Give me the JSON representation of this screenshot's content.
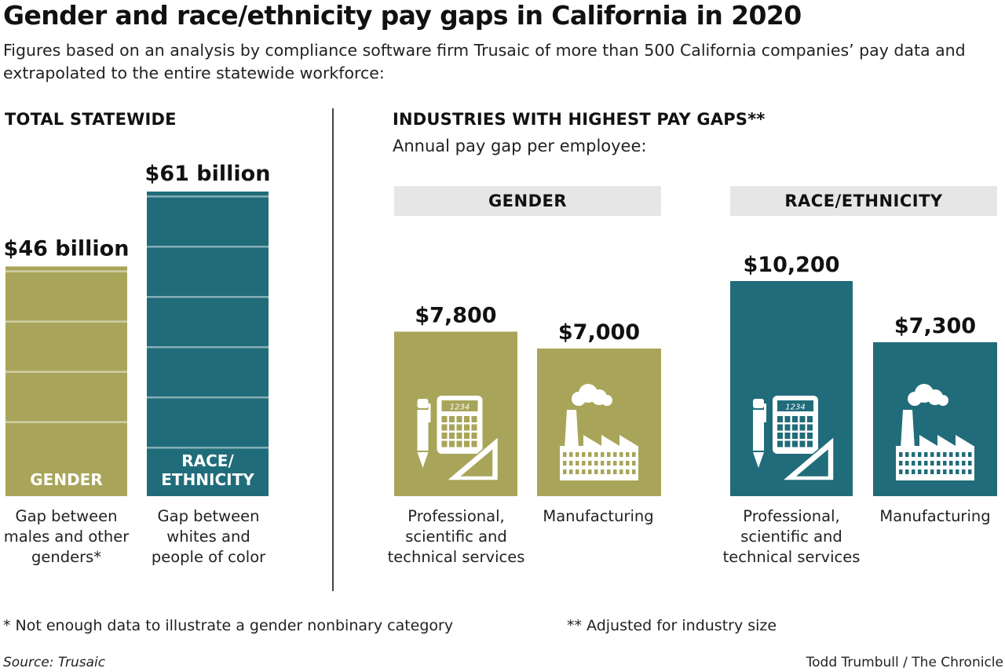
{
  "title": "Gender and race/ethnicity pay gaps in California in 2020",
  "subtitle": "Figures based on an analysis by compliance software firm Trusaic of more than 500 California companies’ pay data and extrapolated to the entire statewide workforce:",
  "colors": {
    "gender": "#a8a55a",
    "race": "#216c7a",
    "band": "#e6e6e6",
    "divider": "#444444"
  },
  "left_section": {
    "heading": "TOTAL STATEWIDE",
    "labels": [
      "Gap between males and other genders*",
      "Gap between whites and people of color"
    ]
  },
  "right_section": {
    "heading": "INDUSTRIES WITH HIGHEST PAY GAPS**",
    "subheading": "Annual pay gap per employee:",
    "gender_header": "GENDER",
    "race_header": "RACE/ETHNICITY",
    "labels": [
      "Professional, scientific and technical services",
      "Manufacturing",
      "Professional, scientific and technical services",
      "Manufacturing"
    ],
    "icons": [
      "calculator-icon",
      "factory-icon",
      "calculator-icon",
      "factory-icon"
    ],
    "calculator_display": "1234"
  },
  "chart_data": [
    {
      "type": "bar",
      "title": "TOTAL STATEWIDE",
      "categories": [
        "GENDER",
        "RACE/ ETHNICITY"
      ],
      "values": [
        46,
        61
      ],
      "unit": "billion dollars",
      "value_labels": [
        "$46 billion",
        "$61 billion"
      ],
      "colors": [
        "#a8a55a",
        "#216c7a"
      ]
    },
    {
      "type": "bar",
      "title": "GENDER",
      "categories": [
        "Professional, scientific and technical services",
        "Manufacturing"
      ],
      "values": [
        7800,
        7000
      ],
      "value_labels": [
        "$7,800",
        "$7,000"
      ],
      "color": "#a8a55a"
    },
    {
      "type": "bar",
      "title": "RACE/ETHNICITY",
      "categories": [
        "Professional, scientific and technical services",
        "Manufacturing"
      ],
      "values": [
        10200,
        7300
      ],
      "value_labels": [
        "$10,200",
        "$7,300"
      ],
      "color": "#216c7a"
    }
  ],
  "footnotes": {
    "gender_note": "* Not enough data to illustrate a gender nonbinary category",
    "industry_note": "** Adjusted for industry size"
  },
  "source": "Source: Trusaic",
  "credit": "Todd Trumbull / The Chronicle"
}
